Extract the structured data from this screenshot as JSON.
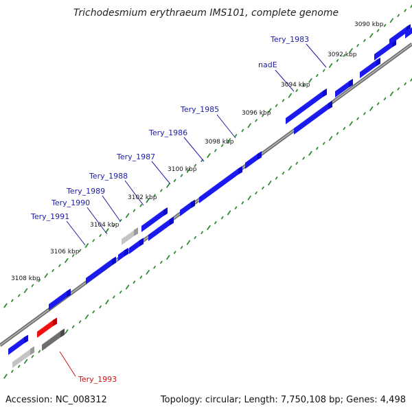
{
  "title": "Trichodesmium erythraeum IMS101, complete genome",
  "accession": "Accession: NC_008312",
  "summary": "Topology: circular; Length: 7,750,108 bp; Genes: 4,498",
  "colors": {
    "backbone": "#8c8c8c",
    "tick_dots": "#2e8b2e",
    "gene_blue": "#1a1aee",
    "gene_red": "#ee1111",
    "gene_gray": "#c4c4c4",
    "gene_darkgray": "#6e6e6e",
    "label_blue": "#1a1aa6",
    "label_red": "#cc1111"
  },
  "scale_ticks": [
    "3090 kbp",
    "3092 kbp",
    "3094 kbp",
    "3096 kbp",
    "3098 kbp",
    "3100 kbp",
    "3102 kbp",
    "3104 kbp",
    "3106 kbp",
    "3108 kbp"
  ],
  "gene_labels": [
    {
      "text": "Tery_1983",
      "color": "blue"
    },
    {
      "text": "nadE",
      "color": "blue"
    },
    {
      "text": "Tery_1985",
      "color": "blue"
    },
    {
      "text": "Tery_1986",
      "color": "blue"
    },
    {
      "text": "Tery_1987",
      "color": "blue"
    },
    {
      "text": "Tery_1988",
      "color": "blue"
    },
    {
      "text": "Tery_1989",
      "color": "blue"
    },
    {
      "text": "Tery_1990",
      "color": "blue"
    },
    {
      "text": "Tery_1991",
      "color": "blue"
    },
    {
      "text": "Tery_1993",
      "color": "red"
    }
  ],
  "features": [
    {
      "color": "blue",
      "strand": "inner"
    },
    {
      "color": "blue",
      "strand": "inner"
    },
    {
      "color": "blue",
      "strand": "inner"
    },
    {
      "color": "blue",
      "strand": "inner"
    },
    {
      "color": "blue",
      "strand": "inner"
    },
    {
      "color": "blue",
      "strand": "inner"
    },
    {
      "color": "blue",
      "strand": "inner"
    },
    {
      "color": "blue",
      "strand": "inner"
    },
    {
      "color": "blue",
      "strand": "inner"
    },
    {
      "color": "blue",
      "strand": "inner"
    },
    {
      "color": "blue",
      "strand": "inner"
    },
    {
      "color": "red",
      "strand": "inner"
    },
    {
      "color": "blue",
      "strand": "outer"
    },
    {
      "color": "blue",
      "strand": "outer"
    },
    {
      "color": "blue",
      "strand": "outer"
    },
    {
      "color": "blue",
      "strand": "outer"
    },
    {
      "color": "blue",
      "strand": "outer"
    },
    {
      "color": "gray",
      "strand": "outer"
    },
    {
      "color": "darkgray",
      "strand": "outer"
    },
    {
      "color": "blue",
      "strand": "outer"
    },
    {
      "color": "darkgray",
      "strand": "outer"
    },
    {
      "color": "gray",
      "strand": "outer"
    }
  ]
}
